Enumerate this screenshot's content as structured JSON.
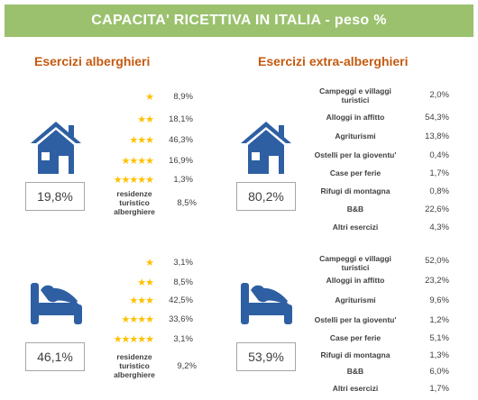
{
  "title": "CAPACITA' RICETTIVA IN ITALIA - peso %",
  "section_hotel": "Esercizi alberghieri",
  "section_extra": "Esercizi extra-alberghieri",
  "colors": {
    "banner": "#9bc16e",
    "section": "#c55a11",
    "icon": "#2e5fa3",
    "star": "#ffc000"
  },
  "chart_data": [
    {
      "type": "table",
      "group": "Esercizi alberghieri",
      "icon": "house-icon",
      "total": "19,8%",
      "rows": [
        {
          "label": "★",
          "value": "8,9%"
        },
        {
          "label": "★★",
          "value": "18,1%"
        },
        {
          "label": "★★★",
          "value": "46,3%"
        },
        {
          "label": "★★★★",
          "value": "16,9%"
        },
        {
          "label": "★★★★★",
          "value": "1,3%"
        },
        {
          "label": "residenze turistico alberghiere",
          "value": "8,5%"
        }
      ]
    },
    {
      "type": "table",
      "group": "Esercizi extra-alberghieri",
      "icon": "house-icon",
      "total": "80,2%",
      "rows": [
        {
          "label": "Campeggi e villaggi turistici",
          "value": "2,0%"
        },
        {
          "label": "Alloggi in affitto",
          "value": "54,3%"
        },
        {
          "label": "Agriturismi",
          "value": "13,8%"
        },
        {
          "label": "Ostelli per la gioventu'",
          "value": "0,4%"
        },
        {
          "label": "Case per ferie",
          "value": "1,7%"
        },
        {
          "label": "Rifugi di montagna",
          "value": "0,8%"
        },
        {
          "label": "B&B",
          "value": "22,6%"
        },
        {
          "label": "Altri esercizi",
          "value": "4,3%"
        }
      ]
    },
    {
      "type": "table",
      "group": "Esercizi alberghieri",
      "icon": "bed-icon",
      "total": "46,1%",
      "rows": [
        {
          "label": "★",
          "value": "3,1%"
        },
        {
          "label": "★★",
          "value": "8,5%"
        },
        {
          "label": "★★★",
          "value": "42,5%"
        },
        {
          "label": "★★★★",
          "value": "33,6%"
        },
        {
          "label": "★★★★★",
          "value": "3,1%"
        },
        {
          "label": "residenze turistico alberghiere",
          "value": "9,2%"
        }
      ]
    },
    {
      "type": "table",
      "group": "Esercizi extra-alberghieri",
      "icon": "bed-icon",
      "total": "53,9%",
      "rows": [
        {
          "label": "Campeggi e villaggi turistici",
          "value": "52,0%"
        },
        {
          "label": "Alloggi in affitto",
          "value": "23,2%"
        },
        {
          "label": "Agriturismi",
          "value": "9,6%"
        },
        {
          "label": "Ostelli per la gioventu'",
          "value": "1,2%"
        },
        {
          "label": "Case per ferie",
          "value": "5,1%"
        },
        {
          "label": "Rifugi di montagna",
          "value": "1,3%"
        },
        {
          "label": "B&B",
          "value": "6,0%"
        },
        {
          "label": "Altri esercizi",
          "value": "1,7%"
        }
      ]
    }
  ]
}
